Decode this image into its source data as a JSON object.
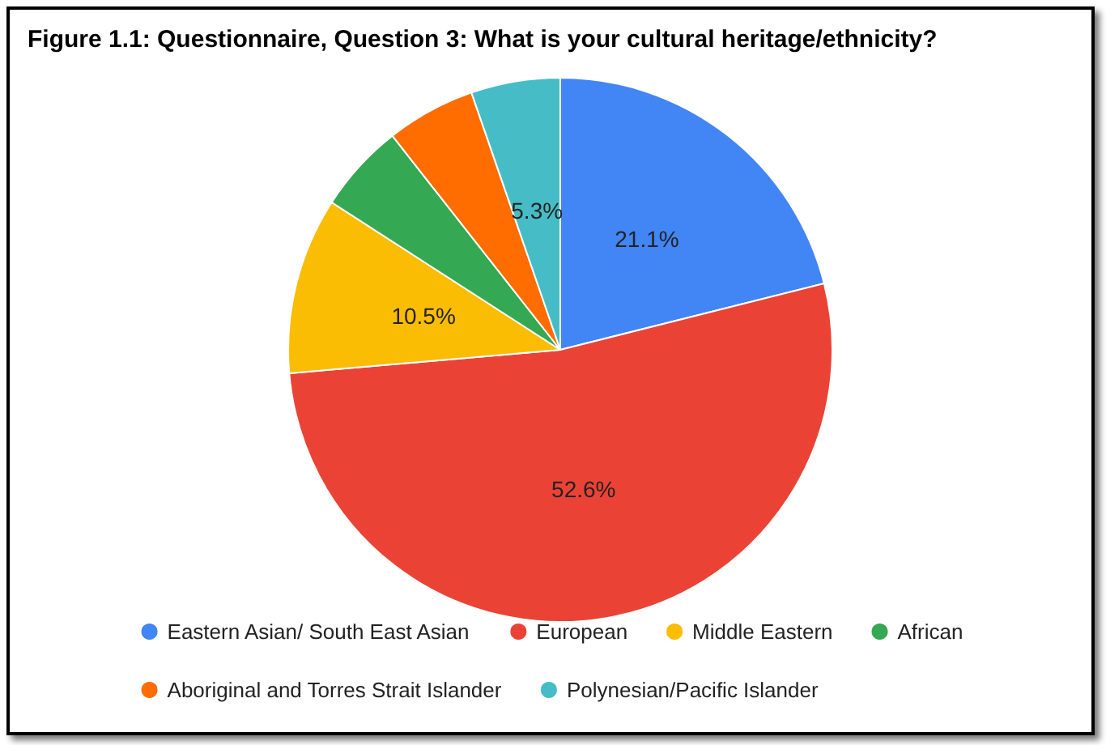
{
  "chart_data": {
    "type": "pie",
    "title": "Figure 1.1: Questionnaire, Question 3: What is your cultural heritage/ethnicity?",
    "categories": [
      "Eastern Asian/ South East Asian",
      "European",
      "Middle Eastern",
      "African",
      "Aboriginal and Torres Strait Islander",
      "Polynesian/Pacific Islander"
    ],
    "values": [
      21.1,
      52.6,
      10.5,
      5.3,
      5.3,
      5.3
    ],
    "value_labels": [
      "21.1%",
      "52.6%",
      "10.5%",
      null,
      null,
      "5.3%"
    ],
    "colors": [
      "#4285f4",
      "#ea4335",
      "#fbbc04",
      "#34a853",
      "#ff6d01",
      "#46bdc6"
    ],
    "legend": "bottom"
  }
}
